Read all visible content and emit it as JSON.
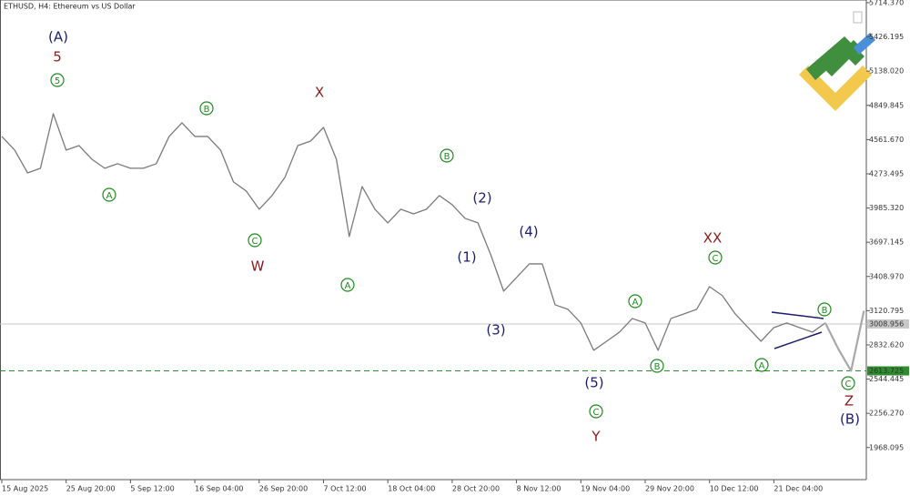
{
  "chart_data": {
    "type": "line",
    "title": "ETHUSD, H4:  Ethereum vs US Dollar",
    "categories": [
      "15 Aug 2025",
      null,
      null,
      null,
      null,
      "25 Aug 20:00",
      null,
      null,
      null,
      null,
      "5 Sep 12:00",
      null,
      null,
      null,
      null,
      "16 Sep 04:00",
      null,
      null,
      null,
      null,
      "26 Sep 20:00",
      null,
      null,
      null,
      null,
      "7 Oct 12:00",
      null,
      null,
      null,
      null,
      "18 Oct 04:00",
      null,
      null,
      null,
      null,
      "28 Oct 20:00",
      null,
      null,
      null,
      null,
      "8 Nov 12:00",
      null,
      null,
      null,
      null,
      "19 Nov 04:00",
      null,
      null,
      null,
      null,
      "29 Nov 20:00",
      null,
      null,
      null,
      null,
      "10 Dec 12:00",
      null,
      null,
      null,
      null,
      "21 Dec 04:00",
      null,
      null,
      null,
      null,
      null,
      null,
      null
    ],
    "series": [
      {
        "color": "#7a7a7a",
        "values": [
          4588,
          4473,
          4281,
          4320,
          4779,
          4473,
          4511,
          4396,
          4320,
          4358,
          4320,
          4320,
          4358,
          4588,
          4703,
          4588,
          4588,
          4473,
          4205,
          4128,
          3975,
          4090,
          4243,
          4511,
          4549,
          4664,
          4396,
          3745,
          4166,
          3975,
          3860,
          3975,
          3936,
          3975,
          4090,
          4013,
          3898,
          3860,
          3591,
          3285,
          3400,
          3515,
          3515,
          3170,
          3132,
          3017,
          2787,
          2863,
          2940,
          3055,
          3017,
          2787,
          3055,
          3093,
          3132,
          3323,
          3247,
          3093,
          2978,
          2863,
          2978,
          3017,
          2978,
          2940,
          3017,
          null,
          null,
          null
        ]
      },
      {
        "color": "#a8a8a8",
        "values": [
          null,
          null,
          null,
          null,
          null,
          null,
          null,
          null,
          null,
          null,
          null,
          null,
          null,
          null,
          null,
          null,
          null,
          null,
          null,
          null,
          null,
          null,
          null,
          null,
          null,
          null,
          null,
          null,
          null,
          null,
          null,
          null,
          null,
          null,
          null,
          null,
          null,
          null,
          null,
          null,
          null,
          null,
          null,
          null,
          null,
          null,
          null,
          null,
          null,
          null,
          null,
          null,
          null,
          null,
          null,
          null,
          null,
          null,
          null,
          null,
          null,
          null,
          null,
          null,
          3017,
          2800,
          2613.725,
          3120
        ]
      }
    ],
    "ylim": [
      1698,
      5737
    ],
    "yticks": [
      {
        "value": 5714.37,
        "label": "5714.370"
      },
      {
        "value": 5426.195,
        "label": "5426.195"
      },
      {
        "value": 5138.02,
        "label": "5138.020"
      },
      {
        "value": 4849.845,
        "label": "4849.845"
      },
      {
        "value": 4561.67,
        "label": "4561.670"
      },
      {
        "value": 4273.495,
        "label": "4273.495"
      },
      {
        "value": 3985.32,
        "label": "3985.320"
      },
      {
        "value": 3697.145,
        "label": "3697.145"
      },
      {
        "value": 3408.97,
        "label": "3408.970"
      },
      {
        "value": 3120.795,
        "label": "3120.795"
      },
      {
        "value": 2832.62,
        "label": "2832.620"
      },
      {
        "value": 2544.445,
        "label": "2544.445"
      },
      {
        "value": 2256.27,
        "label": "2256.270"
      },
      {
        "value": 1968.095,
        "label": "1968.095"
      }
    ],
    "price_lines": [
      {
        "value": 3008.956,
        "label": "3008.956",
        "color": "#c8c8c8",
        "dashed": false
      },
      {
        "value": 2613.725,
        "label": "2613.725",
        "color": "#2e8b2e",
        "dashed": true
      }
    ],
    "annotations": [
      {
        "text": "(A)",
        "color": "#1c1c6e",
        "circled": false
      },
      {
        "text": "5",
        "color": "#8b1a1a",
        "circled": false
      },
      {
        "text": "5",
        "color": "#1f8a1f",
        "circled": true
      },
      {
        "text": "B",
        "color": "#1f8a1f",
        "circled": true
      },
      {
        "text": "A",
        "color": "#1f8a1f",
        "circled": true
      },
      {
        "text": "C",
        "color": "#1f8a1f",
        "circled": true
      },
      {
        "text": "W",
        "color": "#8b1a1a",
        "circled": false
      },
      {
        "text": "X",
        "color": "#8b1a1a",
        "circled": false
      },
      {
        "text": "A",
        "color": "#1f8a1f",
        "circled": true
      },
      {
        "text": "B",
        "color": "#1f8a1f",
        "circled": true
      },
      {
        "text": "(2)",
        "color": "#1c1c6e",
        "circled": false
      },
      {
        "text": "(1)",
        "color": "#1c1c6e",
        "circled": false
      },
      {
        "text": "(3)",
        "color": "#1c1c6e",
        "circled": false
      },
      {
        "text": "(4)",
        "color": "#1c1c6e",
        "circled": false
      },
      {
        "text": "(5)",
        "color": "#1c1c6e",
        "circled": false
      },
      {
        "text": "C",
        "color": "#1f8a1f",
        "circled": true
      },
      {
        "text": "Y",
        "color": "#8b1a1a",
        "circled": false
      },
      {
        "text": "A",
        "color": "#1f8a1f",
        "circled": true
      },
      {
        "text": "B",
        "color": "#1f8a1f",
        "circled": true
      },
      {
        "text": "XX",
        "color": "#8b1a1a",
        "circled": false
      },
      {
        "text": "C",
        "color": "#1f8a1f",
        "circled": true
      },
      {
        "text": "A",
        "color": "#1f8a1f",
        "circled": true
      },
      {
        "text": "B",
        "color": "#1f8a1f",
        "circled": true
      },
      {
        "text": "C",
        "color": "#1f8a1f",
        "circled": true
      },
      {
        "text": "Z",
        "color": "#8b1a1a",
        "circled": false
      },
      {
        "text": "(B)",
        "color": "#1c1c6e",
        "circled": false
      }
    ]
  }
}
